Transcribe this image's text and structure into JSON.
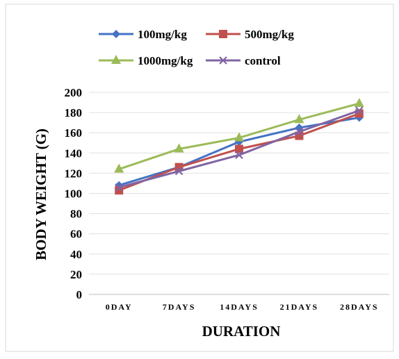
{
  "chart_data": {
    "type": "line",
    "title": "",
    "xlabel": "DURATION",
    "ylabel": "BODY WEIGHT (G)",
    "categories": [
      "0DAY",
      "7DAYS",
      "14DAYS",
      "21DAYS",
      "28DAYS"
    ],
    "ylim": [
      0,
      200
    ],
    "yticks": [
      0,
      20,
      40,
      60,
      80,
      100,
      120,
      140,
      160,
      180,
      200
    ],
    "grid": "horizontal",
    "legend_position": "top",
    "series": [
      {
        "name": "100mg/kg",
        "values": [
          108,
          126,
          151,
          165,
          175
        ],
        "color": "#4472C4",
        "marker": "diamond"
      },
      {
        "name": "500mg/kg",
        "values": [
          103,
          126,
          144,
          157,
          179
        ],
        "color": "#C0504D",
        "marker": "square"
      },
      {
        "name": "1000mg/kg",
        "values": [
          124,
          144,
          155,
          173,
          189
        ],
        "color": "#9BBB59",
        "marker": "triangle"
      },
      {
        "name": "control",
        "values": [
          106,
          122,
          138,
          161,
          182
        ],
        "color": "#8064A2",
        "marker": "x"
      }
    ]
  }
}
